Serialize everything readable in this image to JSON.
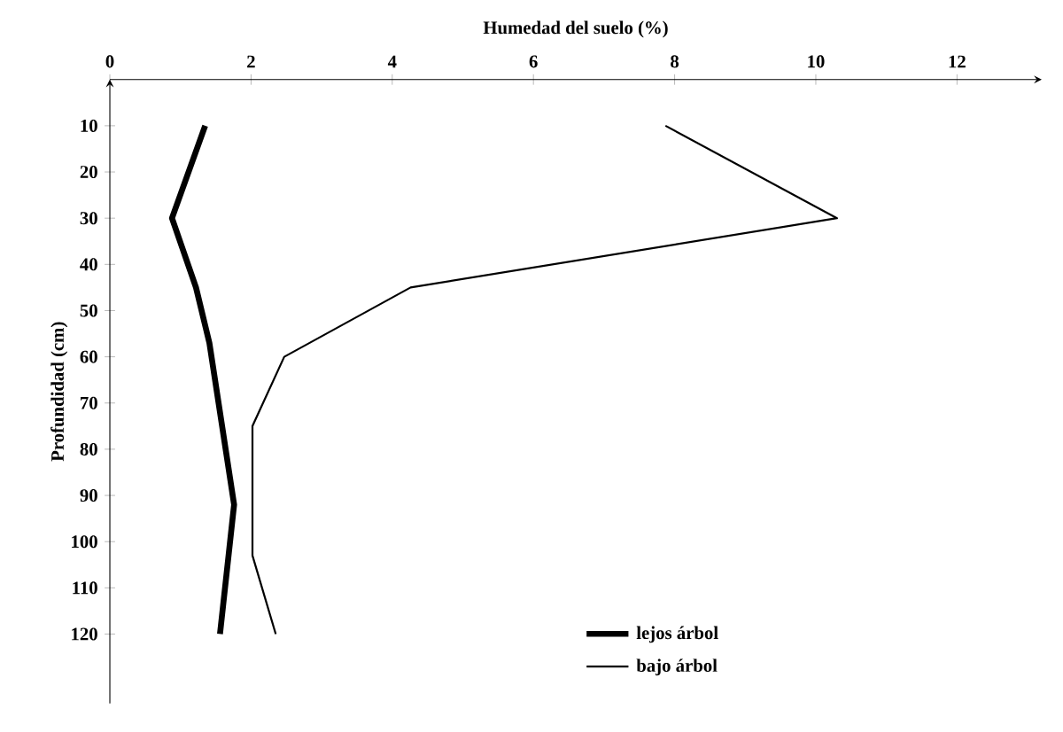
{
  "chart_data": {
    "type": "line",
    "xlabel": "Humedad del suelo (%)",
    "ylabel": "Profundidad (cm)",
    "xlim": [
      0,
      13.2
    ],
    "ylim": [
      135,
      0
    ],
    "xticks": [
      0,
      2,
      4,
      6,
      8,
      10,
      12
    ],
    "yticks": [
      10,
      20,
      30,
      40,
      50,
      60,
      70,
      80,
      90,
      100,
      110,
      120
    ],
    "grid": false,
    "legend": "bottom",
    "marker": "none",
    "line_style": "solid",
    "series": [
      {
        "name": "lejos árbol",
        "color": "#000000",
        "x": [
          1.35,
          0.88,
          1.22,
          1.41,
          1.76,
          1.56
        ],
        "values": [
          10,
          30,
          45,
          57,
          92,
          120
        ]
      },
      {
        "name": "bajo árbol",
        "color": "#000000",
        "x": [
          7.87,
          10.3,
          4.26,
          2.47,
          2.02,
          2.02,
          2.35
        ],
        "values": [
          10,
          30,
          45,
          60,
          75,
          103,
          120
        ]
      }
    ]
  }
}
